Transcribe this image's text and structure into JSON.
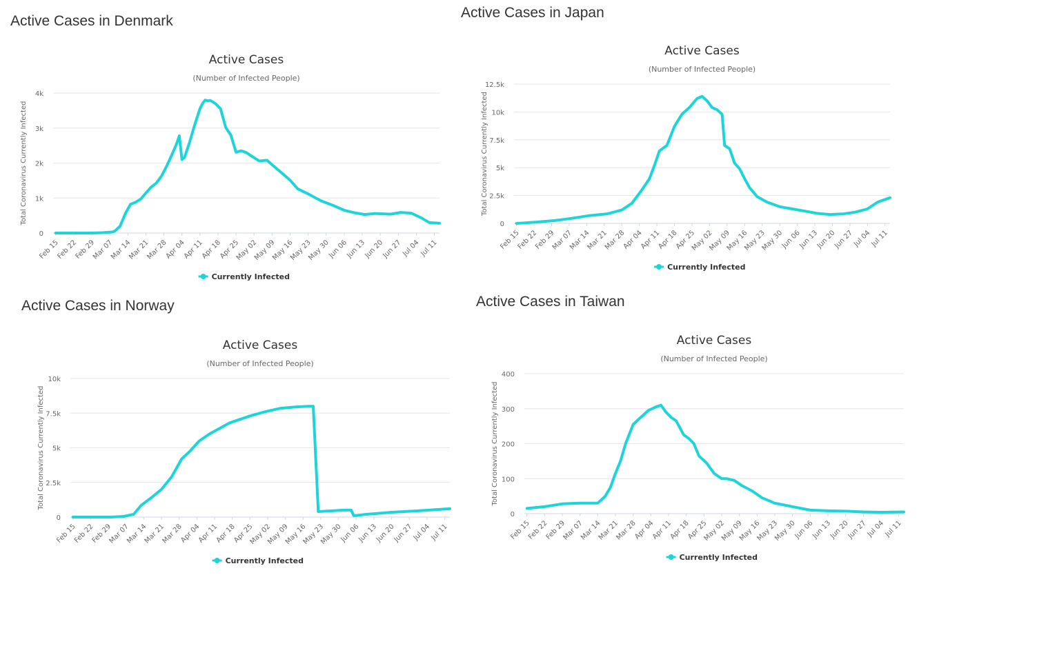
{
  "page": {
    "panels": [
      {
        "id": "denmark",
        "heading": "Active Cases in Denmark"
      },
      {
        "id": "japan",
        "heading": "Active Cases in Japan"
      },
      {
        "id": "norway",
        "heading": "Active Cases in Norway"
      },
      {
        "id": "taiwan",
        "heading": "Active Cases in Taiwan"
      }
    ]
  },
  "series_color": "#1dd5d9",
  "chart_data": [
    {
      "type": "line",
      "title": "Active Cases",
      "subtitle": "(Number of Infected People)",
      "ylabel": "Total Coronavirus Currently Infected",
      "xlabel": "",
      "x_ticks": [
        "Feb 15",
        "Feb 22",
        "Feb 29",
        "Mar 07",
        "Mar 14",
        "Mar 21",
        "Mar 28",
        "Apr 04",
        "Apr 11",
        "Apr 18",
        "Apr 25",
        "May 02",
        "May 09",
        "May 16",
        "May 23",
        "May 30",
        "Jun 06",
        "Jun 13",
        "Jun 20",
        "Jun 27",
        "Jul 04",
        "Jul 11"
      ],
      "y_ticks": [
        "0",
        "1k",
        "2k",
        "3k",
        "4k"
      ],
      "ylim": [
        0,
        4000
      ],
      "grid": true,
      "legend": "bottom-center",
      "series": [
        {
          "name": "Currently Infected",
          "x": [
            "Feb 15",
            "Feb 22",
            "Feb 29",
            "Mar 04",
            "Mar 06",
            "Mar 08",
            "Mar 09",
            "Mar 11",
            "Mar 13",
            "Mar 15",
            "Mar 17",
            "Mar 19",
            "Mar 21",
            "Mar 23",
            "Mar 25",
            "Mar 27",
            "Mar 29",
            "Mar 31",
            "Apr 02",
            "Apr 03",
            "Apr 04",
            "Apr 05",
            "Apr 07",
            "Apr 09",
            "Apr 11",
            "Apr 12",
            "Apr 13",
            "Apr 14",
            "Apr 15",
            "Apr 17",
            "Apr 19",
            "Apr 21",
            "Apr 23",
            "Apr 25",
            "Apr 27",
            "Apr 29",
            "May 01",
            "May 04",
            "May 07",
            "May 10",
            "May 13",
            "May 16",
            "May 19",
            "May 23",
            "May 28",
            "Jun 02",
            "Jun 06",
            "Jun 10",
            "Jun 14",
            "Jun 18",
            "Jun 24",
            "Jun 28",
            "Jul 02",
            "Jul 06",
            "Jul 09",
            "Jul 13"
          ],
          "y": [
            0,
            0,
            0,
            10,
            20,
            30,
            60,
            200,
            550,
            820,
            880,
            970,
            1140,
            1310,
            1420,
            1620,
            1900,
            2220,
            2560,
            2780,
            2100,
            2160,
            2600,
            3100,
            3550,
            3700,
            3800,
            3780,
            3790,
            3700,
            3550,
            3020,
            2800,
            2310,
            2350,
            2300,
            2200,
            2060,
            2080,
            1890,
            1700,
            1510,
            1260,
            1120,
            920,
            780,
            650,
            580,
            530,
            560,
            540,
            590,
            570,
            430,
            300,
            280
          ]
        }
      ]
    },
    {
      "type": "line",
      "title": "Active Cases",
      "subtitle": "(Number of Infected People)",
      "ylabel": "Total Coronavirus Currently Infected",
      "xlabel": "",
      "x_ticks": [
        "Feb 15",
        "Feb 22",
        "Feb 29",
        "Mar 07",
        "Mar 14",
        "Mar 21",
        "Mar 28",
        "Apr 04",
        "Apr 11",
        "Apr 18",
        "Apr 25",
        "May 02",
        "May 09",
        "May 16",
        "May 23",
        "May 30",
        "Jun 06",
        "Jun 13",
        "Jun 20",
        "Jun 27",
        "Jul 04",
        "Jul 11"
      ],
      "y_ticks": [
        "0",
        "2.5k",
        "5k",
        "7.5k",
        "10k",
        "12.5k"
      ],
      "ylim": [
        0,
        12500
      ],
      "grid": true,
      "legend": "bottom-center",
      "series": [
        {
          "name": "Currently Infected",
          "x": [
            "Feb 15",
            "Feb 22",
            "Mar 01",
            "Mar 08",
            "Mar 15",
            "Mar 22",
            "Mar 28",
            "Apr 01",
            "Apr 05",
            "Apr 08",
            "Apr 10",
            "Apr 12",
            "Apr 15",
            "Apr 18",
            "Apr 21",
            "Apr 24",
            "Apr 27",
            "Apr 29",
            "May 01",
            "May 03",
            "May 05",
            "May 07",
            "May 08",
            "May 10",
            "May 12",
            "May 14",
            "May 16",
            "May 18",
            "May 21",
            "May 25",
            "May 30",
            "Jun 04",
            "Jun 09",
            "Jun 14",
            "Jun 19",
            "Jun 24",
            "Jun 29",
            "Jul 04",
            "Jul 08",
            "Jul 13"
          ],
          "y": [
            0,
            100,
            250,
            450,
            700,
            850,
            1200,
            1800,
            3000,
            4000,
            5200,
            6500,
            7000,
            8700,
            9800,
            10400,
            11200,
            11400,
            11000,
            10400,
            10200,
            9800,
            7000,
            6700,
            5400,
            4900,
            4000,
            3200,
            2400,
            1900,
            1500,
            1300,
            1100,
            900,
            800,
            850,
            1000,
            1300,
            1900,
            2300
          ]
        }
      ]
    },
    {
      "type": "line",
      "title": "Active Cases",
      "subtitle": "(Number of Infected People)",
      "ylabel": "Total Coronavirus Currently Infected",
      "xlabel": "",
      "x_ticks": [
        "Feb 15",
        "Feb 22",
        "Feb 29",
        "Mar 07",
        "Mar 14",
        "Mar 21",
        "Mar 28",
        "Apr 04",
        "Apr 11",
        "Apr 18",
        "Apr 25",
        "May 02",
        "May 09",
        "May 16",
        "May 23",
        "May 30",
        "Jun 06",
        "Jun 13",
        "Jun 20",
        "Jun 27",
        "Jul 04",
        "Jul 11"
      ],
      "y_ticks": [
        "0",
        "2.5k",
        "5k",
        "7.5k",
        "10k"
      ],
      "ylim": [
        0,
        10000
      ],
      "grid": true,
      "legend": "bottom-center",
      "series": [
        {
          "name": "Currently Infected",
          "x": [
            "Feb 15",
            "Feb 22",
            "Mar 01",
            "Mar 06",
            "Mar 10",
            "Mar 13",
            "Mar 17",
            "Mar 21",
            "Mar 25",
            "Mar 29",
            "Apr 01",
            "Apr 05",
            "Apr 09",
            "Apr 13",
            "Apr 17",
            "Apr 21",
            "Apr 25",
            "May 01",
            "May 07",
            "May 13",
            "May 18",
            "May 20",
            "May 22",
            "May 27",
            "Jun 01",
            "Jun 04",
            "Jun 05",
            "Jun 10",
            "Jun 20",
            "Jun 30",
            "Jul 13"
          ],
          "y": [
            0,
            0,
            0,
            50,
            200,
            850,
            1400,
            2000,
            2900,
            4200,
            4700,
            5500,
            6000,
            6400,
            6800,
            7050,
            7300,
            7600,
            7850,
            7950,
            8000,
            8000,
            400,
            450,
            500,
            500,
            100,
            200,
            350,
            450,
            600
          ]
        }
      ]
    },
    {
      "type": "line",
      "title": "Active Cases",
      "subtitle": "(Number of Infected People)",
      "ylabel": "Total Coronavirus Currently Infected",
      "xlabel": "",
      "x_ticks": [
        "Feb 15",
        "Feb 22",
        "Feb 29",
        "Mar 07",
        "Mar 14",
        "Mar 21",
        "Mar 28",
        "Apr 04",
        "Apr 11",
        "Apr 18",
        "Apr 25",
        "May 02",
        "May 09",
        "May 16",
        "May 23",
        "May 30",
        "Jun 06",
        "Jun 13",
        "Jun 20",
        "Jun 27",
        "Jul 04",
        "Jul 11"
      ],
      "y_ticks": [
        "0",
        "100",
        "200",
        "300",
        "400"
      ],
      "ylim": [
        0,
        400
      ],
      "grid": true,
      "legend": "bottom-center",
      "series": [
        {
          "name": "Currently Infected",
          "x": [
            "Feb 15",
            "Feb 22",
            "Feb 29",
            "Mar 07",
            "Mar 14",
            "Mar 17",
            "Mar 19",
            "Mar 21",
            "Mar 23",
            "Mar 25",
            "Mar 28",
            "Mar 31",
            "Apr 03",
            "Apr 06",
            "Apr 08",
            "Apr 10",
            "Apr 12",
            "Apr 14",
            "Apr 17",
            "Apr 19",
            "Apr 21",
            "Apr 23",
            "Apr 26",
            "Apr 29",
            "May 02",
            "May 04",
            "May 07",
            "May 10",
            "May 14",
            "May 18",
            "May 23",
            "May 30",
            "Jun 06",
            "Jun 13",
            "Jun 20",
            "Jun 27",
            "Jul 04",
            "Jul 13"
          ],
          "y": [
            15,
            20,
            28,
            30,
            30,
            50,
            75,
            115,
            150,
            200,
            255,
            275,
            295,
            305,
            310,
            290,
            275,
            265,
            225,
            215,
            200,
            165,
            145,
            115,
            100,
            100,
            95,
            80,
            65,
            45,
            30,
            20,
            10,
            8,
            7,
            5,
            4,
            5
          ]
        }
      ]
    }
  ]
}
